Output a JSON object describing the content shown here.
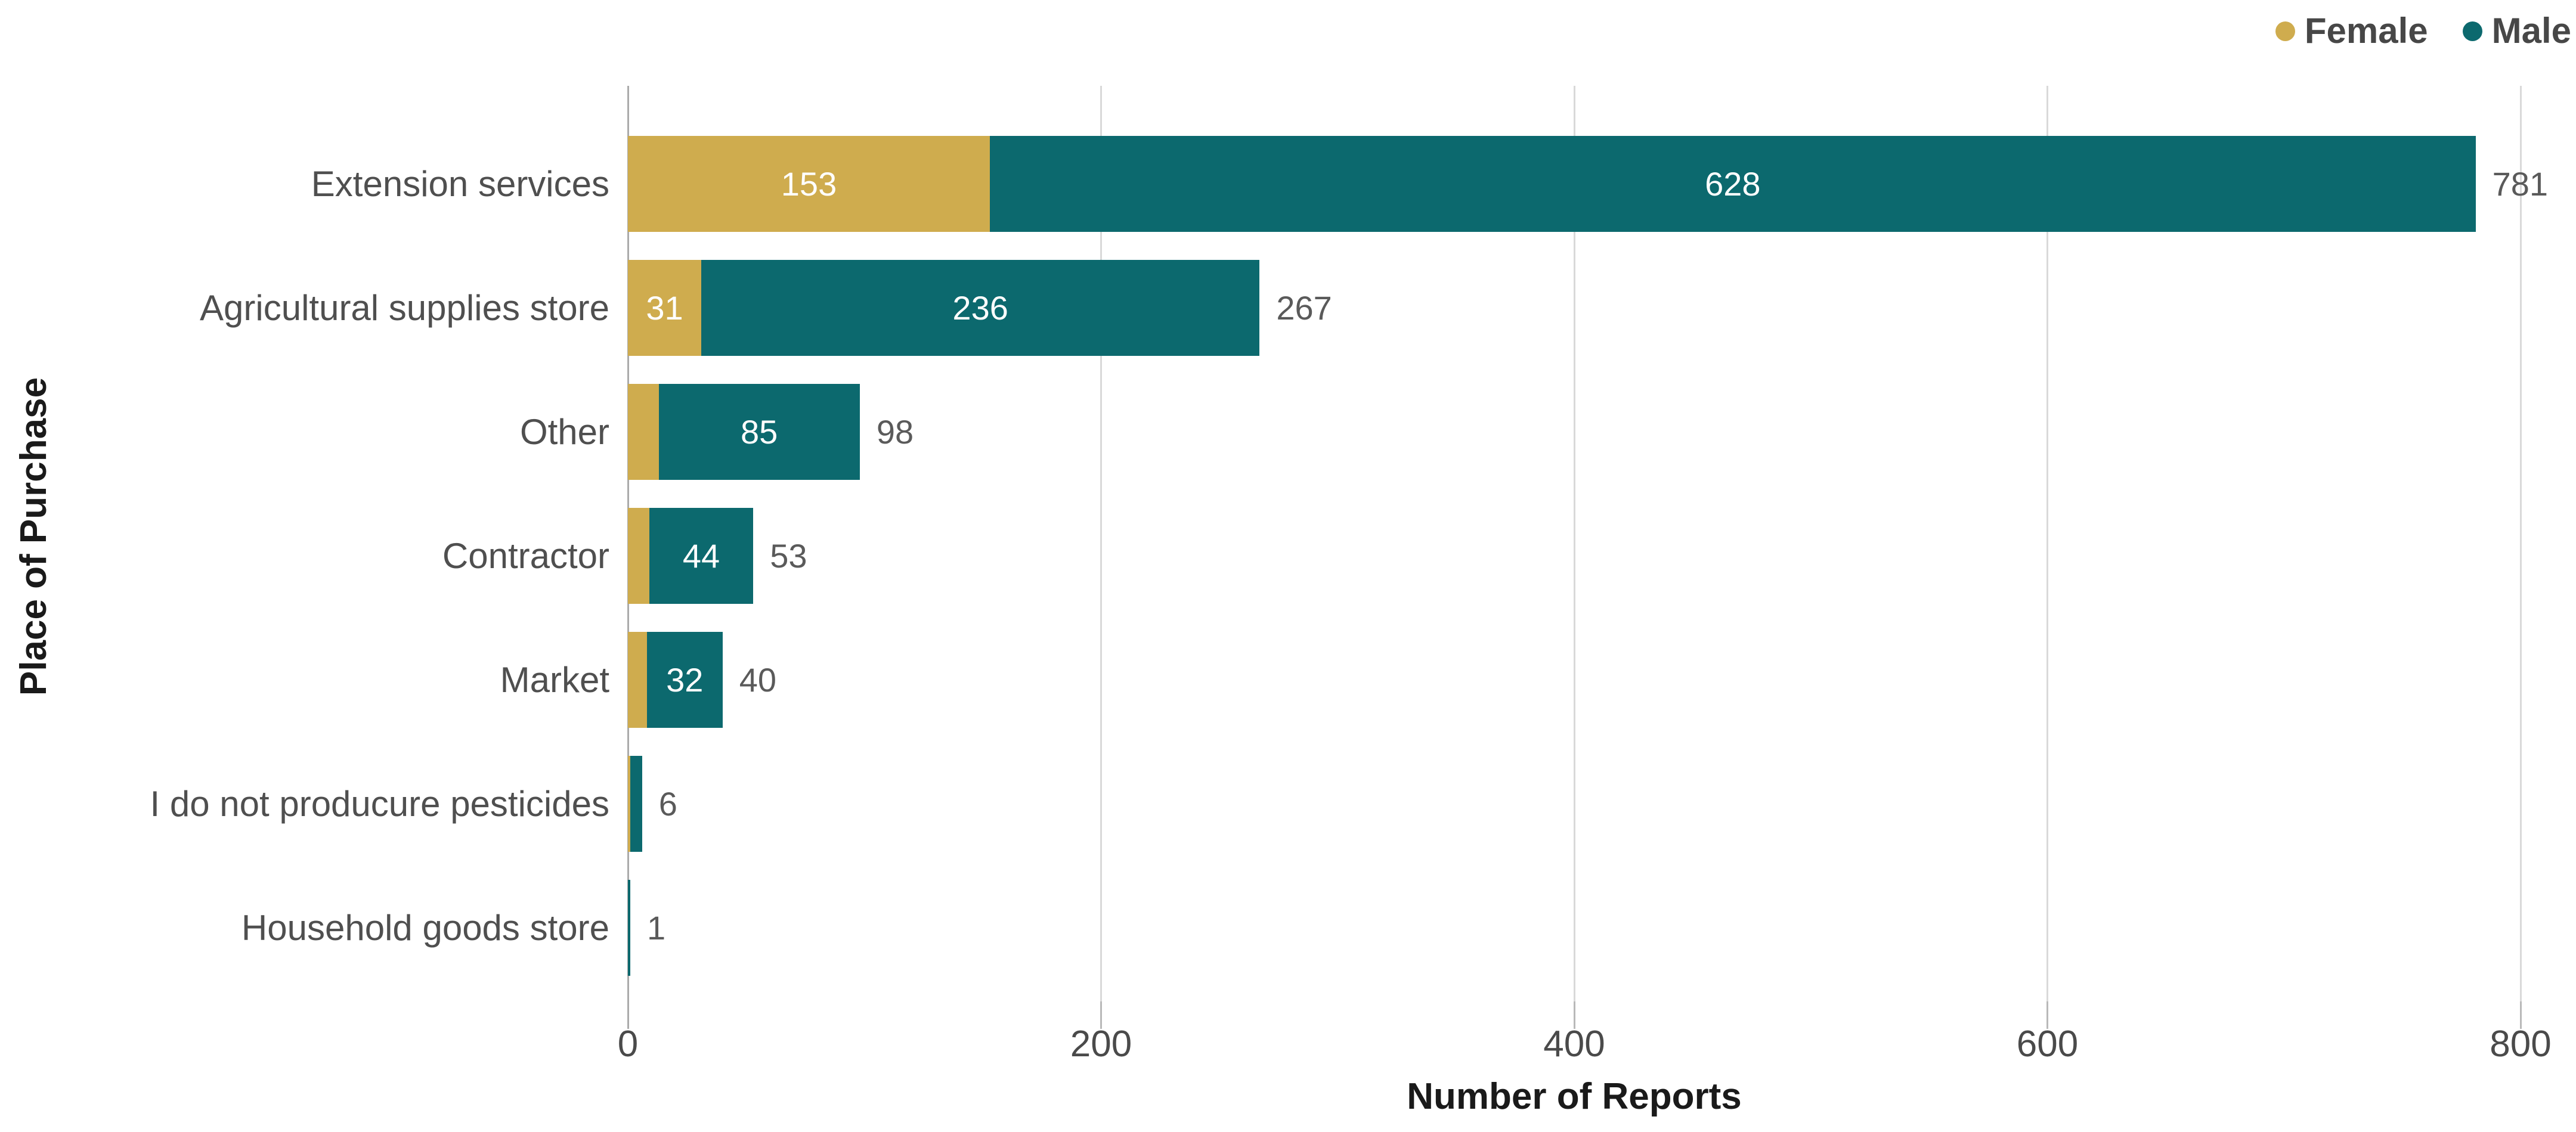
{
  "legend": {
    "items": [
      {
        "label": "Female",
        "color": "#CFAC4E"
      },
      {
        "label": "Male",
        "color": "#0C696E"
      }
    ],
    "text_color": "#474747"
  },
  "chart_data": {
    "type": "bar",
    "orientation": "horizontal",
    "stacked": true,
    "title": "",
    "xlabel": "Number of Reports",
    "ylabel": "Place of Purchase",
    "categories": [
      "Extension services",
      "Agricultural supplies store",
      "Other",
      "Contractor",
      "Market",
      "I do not producure pesticides",
      "Household goods store"
    ],
    "series": [
      {
        "name": "Female",
        "color": "#CFAC4E",
        "values": [
          153,
          31,
          13,
          9,
          8,
          1,
          0
        ],
        "bar_labels": [
          "153",
          "31",
          "",
          "",
          "",
          "",
          ""
        ]
      },
      {
        "name": "Male",
        "color": "#0C696E",
        "values": [
          628,
          236,
          85,
          44,
          32,
          5,
          1
        ],
        "bar_labels": [
          "628",
          "236",
          "85",
          "44",
          "32",
          "",
          ""
        ]
      }
    ],
    "totals": [
      "781",
      "267",
      "98",
      "53",
      "40",
      "6",
      "1"
    ],
    "x_axis": {
      "ticks": [
        "0",
        "200",
        "400",
        "600",
        "800"
      ],
      "min": 0,
      "max": 800,
      "grid": true
    },
    "legend_position": "top-right"
  },
  "style": {
    "grid_color": "#D9D9D9",
    "zero_line_color": "#ABABAB",
    "tick_color": "#B9B9B9",
    "tick_label_color": "#4A4A4A",
    "category_label_color": "#4F4F4F",
    "total_label_color": "#5A5A5A",
    "bar_label_color": "#FFFFFF",
    "axis_title_color": "#1A1A1A"
  }
}
